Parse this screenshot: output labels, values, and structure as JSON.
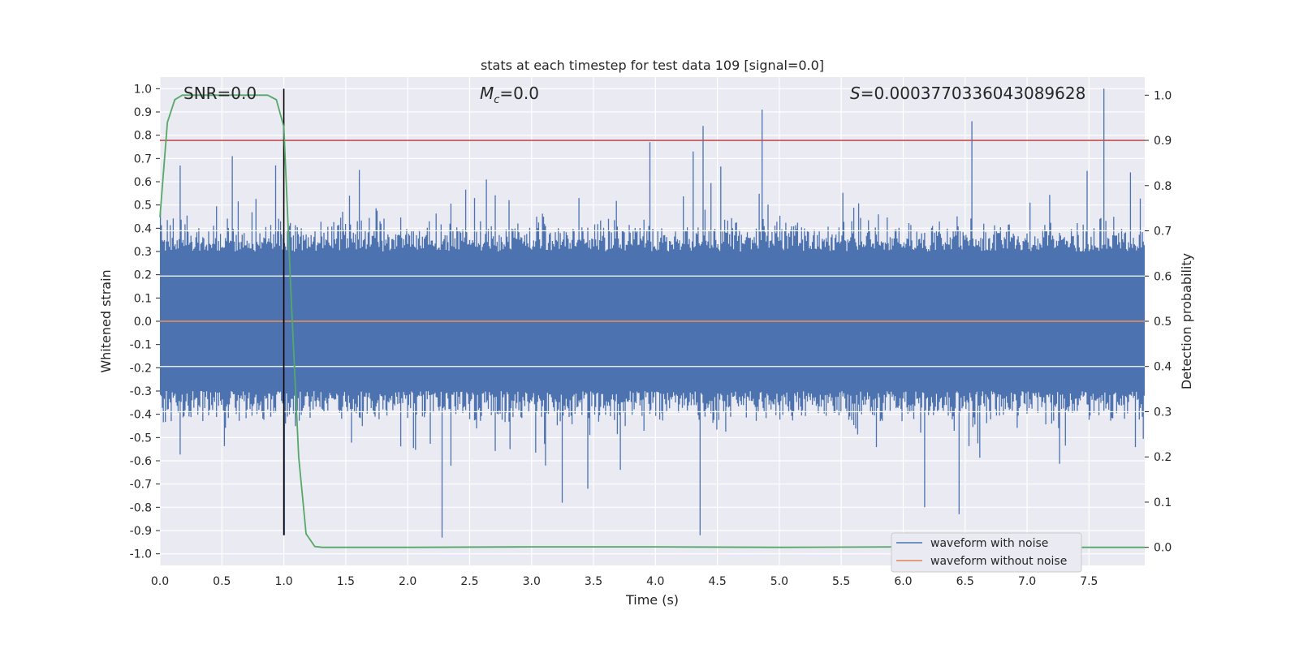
{
  "chart_data": {
    "type": "line",
    "title": "stats at each timestep for test data 109 [signal=0.0]",
    "xlabel": "Time (s)",
    "ylabel": "Whitened strain",
    "y2label": "Detection probability",
    "xlim": [
      0.0,
      7.95
    ],
    "ylim": [
      -1.05,
      1.05
    ],
    "y2lim": [
      -0.04,
      1.04
    ],
    "grid": true,
    "legend_position": "lower right",
    "x_ticks": [
      "0.0",
      "0.5",
      "1.0",
      "1.5",
      "2.0",
      "2.5",
      "3.0",
      "3.5",
      "4.0",
      "4.5",
      "5.0",
      "5.5",
      "6.0",
      "6.5",
      "7.0",
      "7.5"
    ],
    "y_ticks": [
      "1.0",
      "0.9",
      "0.8",
      "0.7",
      "0.6",
      "0.5",
      "0.4",
      "0.3",
      "0.2",
      "0.1",
      "0.0",
      "-0.1",
      "-0.2",
      "-0.3",
      "-0.4",
      "-0.5",
      "-0.6",
      "-0.7",
      "-0.8",
      "-0.9",
      "-1.0"
    ],
    "y2_ticks": [
      "1.0",
      "0.9",
      "0.8",
      "0.7",
      "0.6",
      "0.5",
      "0.4",
      "0.3",
      "0.2",
      "0.1",
      "0.0"
    ],
    "annotations": {
      "snr": "SNR=0.0",
      "mc_symbol": "M",
      "mc_sub": "c",
      "mc_value": "=0.0",
      "s_symbol": "S",
      "s_value": "=0.0003770336043089628"
    },
    "threshold": {
      "axis": "right",
      "value": 0.9,
      "color": "#c44e52"
    },
    "marker_line": {
      "x": 1.0,
      "ymin": -0.92,
      "ymax": 1.0,
      "color": "#000000"
    },
    "series": [
      {
        "name": "waveform with noise",
        "color": "#4c72b0",
        "axis": "left",
        "noise_envelope": {
          "typical_amplitude": 0.3,
          "peak_amplitude": 1.0
        }
      },
      {
        "name": "waveform without noise",
        "color": "#dd8452",
        "axis": "left",
        "x": [
          0.0,
          7.95
        ],
        "y": [
          0.0,
          0.0
        ]
      },
      {
        "name": "",
        "color": "#55a868",
        "axis": "right",
        "x": [
          0.0,
          0.06,
          0.12,
          0.18,
          0.25,
          0.5,
          0.75,
          0.87,
          0.94,
          1.0,
          1.06,
          1.12,
          1.18,
          1.25,
          1.31,
          1.5,
          2.0,
          3.0,
          4.0,
          5.0,
          6.0,
          7.0,
          7.95
        ],
        "y": [
          0.73,
          0.94,
          0.99,
          1.0,
          1.0,
          1.0,
          1.0,
          1.0,
          0.99,
          0.93,
          0.55,
          0.2,
          0.03,
          0.002,
          0.0,
          0.0,
          0.0,
          0.001,
          0.001,
          0.0,
          0.001,
          0.0,
          0.0
        ]
      }
    ]
  }
}
